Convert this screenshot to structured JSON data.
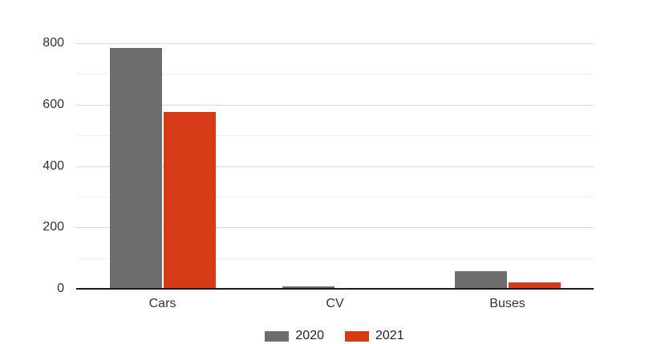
{
  "chart_data": {
    "type": "bar",
    "title": "",
    "categories": [
      "Cars",
      "CV",
      "Buses"
    ],
    "series": [
      {
        "name": "2020",
        "color": "#6d6d6d",
        "values": [
          785,
          8,
          57
        ]
      },
      {
        "name": "2021",
        "color": "#d63b17",
        "values": [
          575,
          3,
          21
        ]
      }
    ],
    "xlabel": "",
    "ylabel": "",
    "ylim": [
      0,
      800
    ],
    "y_major_ticks": [
      0,
      200,
      400,
      600,
      800
    ],
    "y_minor_step": 100,
    "grid": "on",
    "legend_position": "bottom"
  },
  "colors": {
    "background": "#ffffff",
    "major_gridline": "#d9d9d9",
    "minor_gridline": "#efefef",
    "axis_line": "#1b1b1b",
    "axis_text": "#333333",
    "legend_text": "#222222",
    "series_2020": "#6d6d6d",
    "series_2021": "#d63b17"
  }
}
